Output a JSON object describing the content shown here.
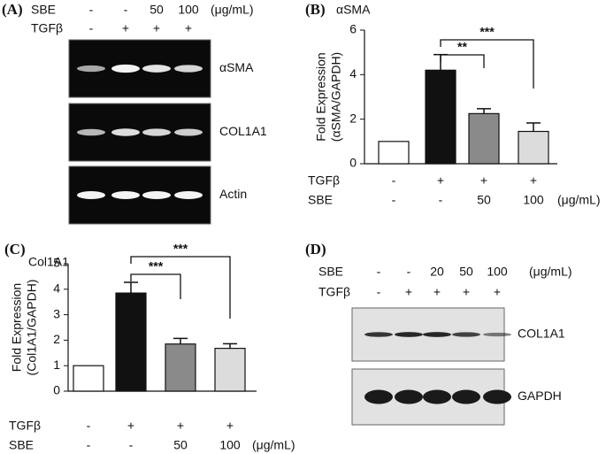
{
  "gels": [
    {
      "label": "(A)",
      "unit": "(μg/mL)",
      "rows": [
        {
          "name": "SBE",
          "values": [
            "-",
            "-",
            "50",
            "100"
          ]
        },
        {
          "name": "TGFβ",
          "values": [
            "-",
            "+",
            "+",
            "+"
          ]
        }
      ],
      "bands": [
        "αSMA",
        "COL1A1",
        "Actin"
      ]
    },
    {
      "label": "(D)",
      "unit": "(μg/mL)",
      "rows": [
        {
          "name": "SBE",
          "values": [
            "-",
            "-",
            "20",
            "50",
            "100"
          ]
        },
        {
          "name": "TGFβ",
          "values": [
            "-",
            "+",
            "+",
            "+",
            "+"
          ]
        }
      ],
      "bands": [
        "COL1A1",
        "GAPDH"
      ]
    }
  ],
  "chart_data": [
    {
      "type": "bar",
      "panel": "(B)",
      "title": "αSMA",
      "ylabel": [
        "Fold Expression",
        "(αSMA/GAPDH)"
      ],
      "conditions": [
        {
          "name": "TGFβ",
          "values": [
            "-",
            "+",
            "+",
            "+"
          ]
        },
        {
          "name": "SBE",
          "values": [
            "-",
            "-",
            "50",
            "100"
          ]
        }
      ],
      "unit": "(μg/mL)",
      "values": [
        1,
        4.2,
        2.25,
        1.45
      ],
      "errors": [
        null,
        0.7,
        0.22,
        0.38
      ],
      "colors": [
        "#ffffff",
        "#111111",
        "#8a8a8a",
        "#dcdcdc"
      ],
      "ylim": [
        0,
        6
      ],
      "yticks": [
        0,
        2,
        4,
        6
      ],
      "brackets": [
        {
          "from": 1,
          "to": 2,
          "label": "**"
        },
        {
          "from": 1,
          "to": 3,
          "label": "***"
        }
      ]
    },
    {
      "type": "bar",
      "panel": "(C)",
      "title": "Col1A1",
      "ylabel": [
        "Fold Expression",
        "(Col1A1/GAPDH)"
      ],
      "conditions": [
        {
          "name": "TGFβ",
          "values": [
            "-",
            "+",
            "+",
            "+"
          ]
        },
        {
          "name": "SBE",
          "values": [
            "-",
            "-",
            "50",
            "100"
          ]
        }
      ],
      "unit": "(μg/mL)",
      "values": [
        1,
        3.85,
        1.85,
        1.68
      ],
      "errors": [
        null,
        0.42,
        0.22,
        0.18
      ],
      "colors": [
        "#ffffff",
        "#111111",
        "#8a8a8a",
        "#dcdcdc"
      ],
      "ylim": [
        0,
        5
      ],
      "yticks": [
        0,
        1,
        2,
        3,
        4,
        5
      ],
      "brackets": [
        {
          "from": 1,
          "to": 2,
          "label": "***"
        },
        {
          "from": 1,
          "to": 3,
          "label": "***"
        }
      ]
    }
  ]
}
